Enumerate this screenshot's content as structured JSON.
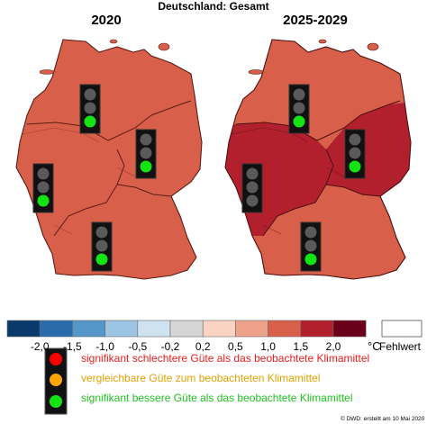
{
  "header": {
    "title": "Deutschland: Gesamt"
  },
  "panels": [
    {
      "title": "2020",
      "regions": [
        {
          "id": "north",
          "fill": "#d8604a",
          "light": "green"
        },
        {
          "id": "east",
          "fill": "#d8604a",
          "light": "green"
        },
        {
          "id": "west",
          "fill": "#d8604a",
          "light": "green"
        },
        {
          "id": "south",
          "fill": "#d8604a",
          "light": "green"
        }
      ]
    },
    {
      "title": "2025-2029",
      "regions": [
        {
          "id": "north",
          "fill": "#d8604a",
          "light": "green"
        },
        {
          "id": "east",
          "fill": "#b2202e",
          "light": "green"
        },
        {
          "id": "west",
          "fill": "#b2202e",
          "light": "off"
        },
        {
          "id": "south",
          "fill": "#d8604a",
          "light": "green"
        }
      ]
    }
  ],
  "colorbar": {
    "colors": [
      "#0a3a6c",
      "#2a6bab",
      "#5597c8",
      "#9bc5e2",
      "#cfe2ef",
      "#d6d6d6",
      "#fbd3c2",
      "#eea28a",
      "#d8604a",
      "#b2202e",
      "#6a0019"
    ],
    "ticks": [
      "-2,0",
      "-1,5",
      "-1,0",
      "-0,5",
      "-0,2",
      "0,2",
      "0,5",
      "1,0",
      "1,5",
      "2,0"
    ],
    "unit": "°C",
    "missing_label": "Fehlwert"
  },
  "legend": {
    "items": [
      {
        "color": "#ff0000",
        "text": "signifikant schlechtere Güte als das beobachtete Klimamittel",
        "text_color": "#e8201e"
      },
      {
        "color": "#ffa500",
        "text": "vergleichbare Güte zum beobachteten Klimamittel",
        "text_color": "#e3a200"
      },
      {
        "color": "#14e414",
        "text": "signifikant bessere Güte als das beobachtete Klimamittel",
        "text_color": "#20c020"
      }
    ]
  },
  "footer": "© DWD: erstellt am 10 Mai 2020"
}
